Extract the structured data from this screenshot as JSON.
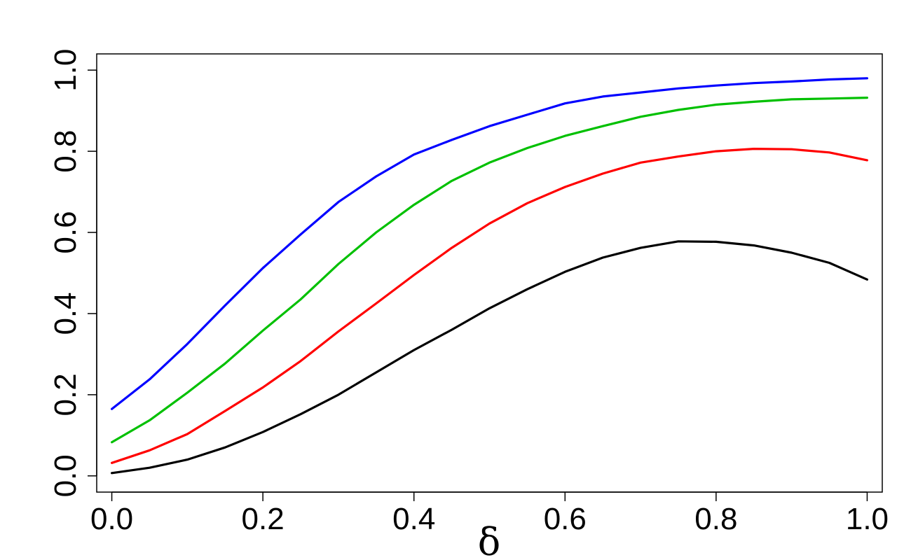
{
  "chart_data": {
    "type": "line",
    "xlabel": "δ",
    "ylabel": "",
    "xlim": [
      -0.02,
      1.02
    ],
    "ylim": [
      -0.04,
      1.04
    ],
    "xticks": [
      "0.0",
      "0.2",
      "0.4",
      "0.6",
      "0.8",
      "1.0"
    ],
    "yticks": [
      "0.0",
      "0.2",
      "0.4",
      "0.6",
      "0.8",
      "1.0"
    ],
    "grid": false,
    "legend": "none",
    "x": [
      0.0,
      0.05,
      0.1,
      0.15,
      0.2,
      0.25,
      0.3,
      0.35,
      0.4,
      0.45,
      0.5,
      0.55,
      0.6,
      0.65,
      0.7,
      0.75,
      0.8,
      0.85,
      0.9,
      0.95,
      1.0
    ],
    "series": [
      {
        "color": "#0000ff",
        "values": [
          0.165,
          0.238,
          0.325,
          0.42,
          0.512,
          0.595,
          0.675,
          0.738,
          0.792,
          0.828,
          0.862,
          0.89,
          0.918,
          0.935,
          0.945,
          0.955,
          0.962,
          0.968,
          0.972,
          0.977,
          0.98
        ]
      },
      {
        "color": "#00c000",
        "values": [
          0.083,
          0.137,
          0.205,
          0.277,
          0.358,
          0.435,
          0.522,
          0.6,
          0.668,
          0.727,
          0.772,
          0.808,
          0.838,
          0.862,
          0.885,
          0.902,
          0.915,
          0.922,
          0.928,
          0.93,
          0.932
        ]
      },
      {
        "color": "#ff0000",
        "values": [
          0.032,
          0.063,
          0.103,
          0.16,
          0.218,
          0.283,
          0.356,
          0.425,
          0.495,
          0.562,
          0.622,
          0.672,
          0.712,
          0.745,
          0.772,
          0.787,
          0.8,
          0.806,
          0.805,
          0.797,
          0.778
        ]
      },
      {
        "color": "#000000",
        "values": [
          0.007,
          0.02,
          0.04,
          0.07,
          0.108,
          0.152,
          0.2,
          0.255,
          0.31,
          0.36,
          0.413,
          0.46,
          0.503,
          0.538,
          0.562,
          0.578,
          0.577,
          0.568,
          0.55,
          0.525,
          0.484
        ]
      }
    ]
  }
}
